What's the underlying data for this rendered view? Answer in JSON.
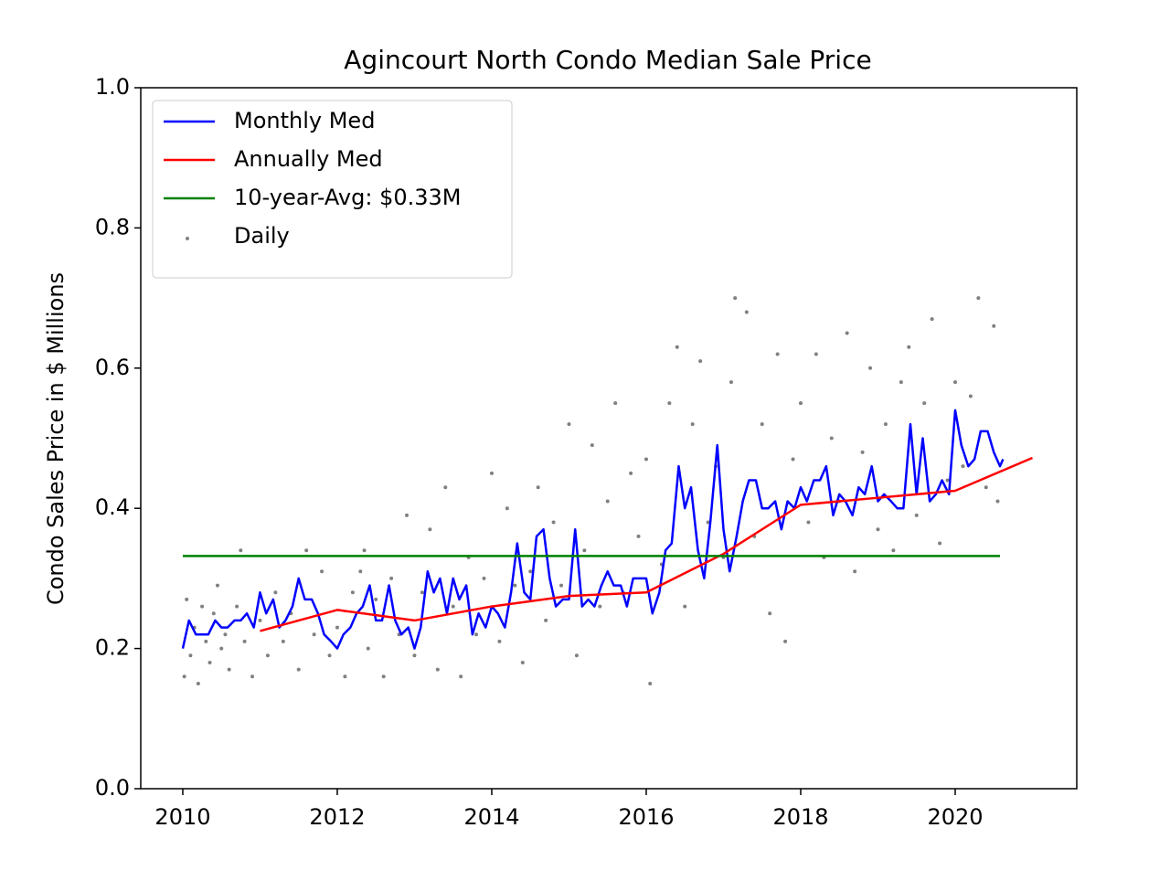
{
  "chart_data": {
    "type": "line",
    "title": "Agincourt North Condo Median Sale Price",
    "y_label": "Condo Sales Price in $ Millions",
    "xlim": [
      2009.456,
      2021.574
    ],
    "ylim": [
      0,
      1
    ],
    "xticks": [
      2010,
      2012,
      2014,
      2016,
      2018,
      2020
    ],
    "yticks": [
      {
        "value": 0,
        "label": "0.0"
      },
      0.2,
      0.4,
      0.6,
      0.8,
      {
        "value": 1,
        "label": "1.0"
      }
    ],
    "legend": "upper left",
    "series": [
      {
        "name": "Monthly Med",
        "color": "#0000ff",
        "style": "line",
        "x": [
          2010,
          2010.08,
          2010.17,
          2010.25,
          2010.33,
          2010.42,
          2010.5,
          2010.58,
          2010.67,
          2010.75,
          2010.83,
          2010.92,
          2011,
          2011.08,
          2011.17,
          2011.25,
          2011.33,
          2011.42,
          2011.5,
          2011.58,
          2011.67,
          2011.75,
          2011.83,
          2011.92,
          2012,
          2012.08,
          2012.17,
          2012.25,
          2012.33,
          2012.42,
          2012.5,
          2012.58,
          2012.67,
          2012.75,
          2012.83,
          2012.92,
          2013,
          2013.08,
          2013.17,
          2013.25,
          2013.33,
          2013.42,
          2013.5,
          2013.58,
          2013.67,
          2013.75,
          2013.83,
          2013.92,
          2014,
          2014.08,
          2014.17,
          2014.25,
          2014.33,
          2014.42,
          2014.5,
          2014.58,
          2014.67,
          2014.75,
          2014.83,
          2014.92,
          2015,
          2015.08,
          2015.17,
          2015.25,
          2015.33,
          2015.42,
          2015.5,
          2015.58,
          2015.67,
          2015.75,
          2015.83,
          2015.92,
          2016,
          2016.08,
          2016.17,
          2016.25,
          2016.33,
          2016.42,
          2016.5,
          2016.58,
          2016.67,
          2016.75,
          2016.83,
          2016.92,
          2017,
          2017.08,
          2017.17,
          2017.25,
          2017.33,
          2017.42,
          2017.5,
          2017.58,
          2017.67,
          2017.75,
          2017.83,
          2017.92,
          2018,
          2018.08,
          2018.17,
          2018.25,
          2018.33,
          2018.42,
          2018.5,
          2018.58,
          2018.67,
          2018.75,
          2018.83,
          2018.92,
          2019,
          2019.08,
          2019.17,
          2019.25,
          2019.33,
          2019.42,
          2019.5,
          2019.58,
          2019.67,
          2019.75,
          2019.83,
          2019.92,
          2020,
          2020.08,
          2020.17,
          2020.25,
          2020.33,
          2020.42,
          2020.5,
          2020.58,
          2020.62
        ],
        "values": [
          0.2,
          0.24,
          0.22,
          0.22,
          0.22,
          0.24,
          0.23,
          0.23,
          0.24,
          0.24,
          0.25,
          0.23,
          0.28,
          0.25,
          0.27,
          0.23,
          0.24,
          0.26,
          0.3,
          0.27,
          0.27,
          0.25,
          0.22,
          0.21,
          0.2,
          0.22,
          0.23,
          0.25,
          0.26,
          0.29,
          0.24,
          0.24,
          0.29,
          0.24,
          0.22,
          0.23,
          0.2,
          0.23,
          0.31,
          0.28,
          0.3,
          0.25,
          0.3,
          0.27,
          0.29,
          0.22,
          0.25,
          0.23,
          0.26,
          0.25,
          0.23,
          0.28,
          0.35,
          0.28,
          0.27,
          0.36,
          0.37,
          0.3,
          0.26,
          0.27,
          0.27,
          0.37,
          0.26,
          0.27,
          0.26,
          0.29,
          0.31,
          0.29,
          0.29,
          0.26,
          0.3,
          0.3,
          0.3,
          0.25,
          0.28,
          0.34,
          0.35,
          0.46,
          0.4,
          0.43,
          0.34,
          0.3,
          0.38,
          0.49,
          0.37,
          0.31,
          0.36,
          0.41,
          0.44,
          0.44,
          0.4,
          0.4,
          0.41,
          0.37,
          0.41,
          0.4,
          0.43,
          0.41,
          0.44,
          0.44,
          0.46,
          0.39,
          0.42,
          0.41,
          0.39,
          0.43,
          0.42,
          0.46,
          0.41,
          0.42,
          0.41,
          0.4,
          0.4,
          0.52,
          0.42,
          0.5,
          0.41,
          0.42,
          0.44,
          0.42,
          0.54,
          0.49,
          0.46,
          0.47,
          0.51,
          0.51,
          0.48,
          0.46,
          0.47
        ]
      },
      {
        "name": "Annually Med",
        "color": "#ff0000",
        "style": "line",
        "x": [
          2011,
          2012,
          2013,
          2014,
          2015,
          2016,
          2017,
          2018,
          2019,
          2020,
          2021
        ],
        "values": [
          0.225,
          0.255,
          0.24,
          0.26,
          0.275,
          0.28,
          0.335,
          0.405,
          0.415,
          0.425,
          0.472
        ]
      },
      {
        "name": "10-year-Avg: $0.33M",
        "color": "#008000",
        "style": "line",
        "x": [
          2010,
          2020.58
        ],
        "values": [
          0.332,
          0.332
        ]
      },
      {
        "name": "Daily",
        "color": "#808080",
        "style": "points",
        "x": [
          2010.02,
          2010.05,
          2010.1,
          2010.15,
          2010.2,
          2010.25,
          2010.3,
          2010.35,
          2010.4,
          2010.45,
          2010.5,
          2010.55,
          2010.6,
          2010.7,
          2010.75,
          2010.8,
          2010.9,
          2011,
          2011.1,
          2011.2,
          2011.3,
          2011.4,
          2011.5,
          2011.6,
          2011.7,
          2011.8,
          2011.9,
          2012,
          2012.1,
          2012.2,
          2012.3,
          2012.35,
          2012.4,
          2012.5,
          2012.6,
          2012.7,
          2012.8,
          2012.9,
          2013,
          2013.1,
          2013.2,
          2013.3,
          2013.4,
          2013.5,
          2013.6,
          2013.7,
          2013.8,
          2013.9,
          2014,
          2014.1,
          2014.2,
          2014.3,
          2014.4,
          2014.5,
          2014.6,
          2014.7,
          2014.8,
          2014.9,
          2015,
          2015.1,
          2015.2,
          2015.3,
          2015.4,
          2015.5,
          2015.6,
          2015.7,
          2015.8,
          2015.9,
          2016,
          2016.05,
          2016.2,
          2016.3,
          2016.4,
          2016.5,
          2016.6,
          2016.7,
          2016.8,
          2016.9,
          2017,
          2017.1,
          2017.15,
          2017.3,
          2017.4,
          2017.5,
          2017.6,
          2017.7,
          2017.8,
          2017.9,
          2018,
          2018.1,
          2018.2,
          2018.3,
          2018.4,
          2018.5,
          2018.6,
          2018.7,
          2018.8,
          2018.9,
          2019,
          2019.1,
          2019.2,
          2019.3,
          2019.4,
          2019.5,
          2019.6,
          2019.7,
          2019.8,
          2019.9,
          2020,
          2020.1,
          2020.2,
          2020.3,
          2020.4,
          2020.5,
          2020.55
        ],
        "values": [
          0.16,
          0.27,
          0.19,
          0.23,
          0.15,
          0.26,
          0.21,
          0.18,
          0.25,
          0.29,
          0.2,
          0.22,
          0.17,
          0.26,
          0.34,
          0.21,
          0.16,
          0.24,
          0.19,
          0.28,
          0.21,
          0.25,
          0.17,
          0.34,
          0.22,
          0.31,
          0.19,
          0.23,
          0.16,
          0.28,
          0.31,
          0.34,
          0.2,
          0.27,
          0.16,
          0.3,
          0.22,
          0.39,
          0.19,
          0.28,
          0.37,
          0.17,
          0.43,
          0.26,
          0.16,
          0.33,
          0.22,
          0.3,
          0.45,
          0.21,
          0.4,
          0.29,
          0.18,
          0.31,
          0.43,
          0.24,
          0.38,
          0.29,
          0.52,
          0.19,
          0.34,
          0.49,
          0.26,
          0.41,
          0.55,
          0.28,
          0.45,
          0.36,
          0.47,
          0.15,
          0.32,
          0.55,
          0.63,
          0.26,
          0.52,
          0.61,
          0.38,
          0.46,
          0.33,
          0.58,
          0.7,
          0.68,
          0.36,
          0.52,
          0.25,
          0.62,
          0.21,
          0.47,
          0.55,
          0.38,
          0.62,
          0.33,
          0.5,
          0.41,
          0.65,
          0.31,
          0.48,
          0.6,
          0.37,
          0.52,
          0.34,
          0.58,
          0.63,
          0.39,
          0.55,
          0.67,
          0.35,
          0.44,
          0.58,
          0.46,
          0.56,
          0.7,
          0.43,
          0.66,
          0.41
        ]
      }
    ]
  }
}
